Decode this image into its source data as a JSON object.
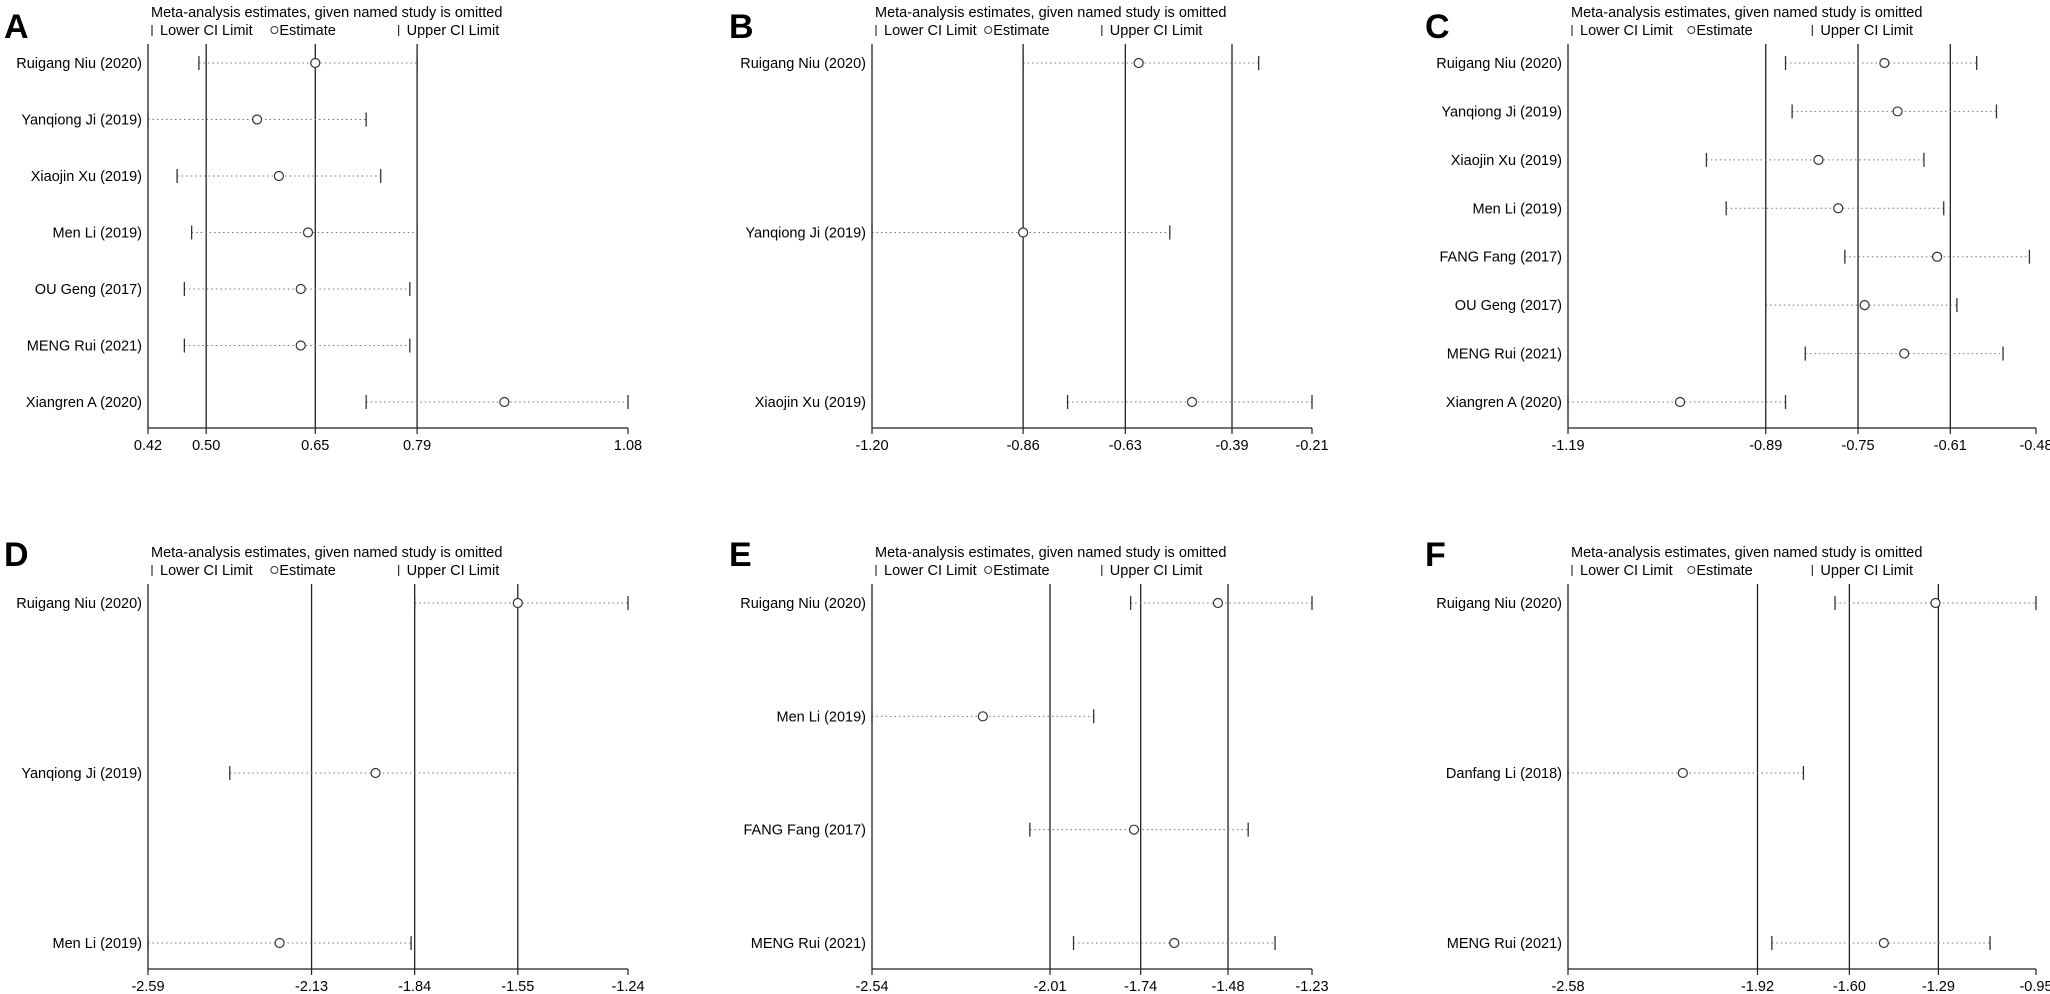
{
  "chart_data": [
    {
      "panel": "A",
      "type": "scatter",
      "title": "Meta-analysis estimates, given named study is omitted",
      "legend": [
        "Lower CI Limit",
        "Estimate",
        "Upper CI Limit"
      ],
      "ticks": [
        "0.42",
        "0.50",
        "0.65",
        "0.79",
        "1.08"
      ],
      "xlim": [
        0.42,
        1.08
      ],
      "ref_lines": [
        0.5,
        0.65,
        0.79
      ],
      "studies": [
        {
          "label": "Ruigang Niu (2020)",
          "lower": 0.49,
          "estimate": 0.65,
          "upper": 0.79
        },
        {
          "label": "Yanqiong Ji (2019)",
          "lower": 0.42,
          "estimate": 0.57,
          "upper": 0.72
        },
        {
          "label": "Xiaojin Xu (2019)",
          "lower": 0.46,
          "estimate": 0.6,
          "upper": 0.74
        },
        {
          "label": "Men Li (2019)",
          "lower": 0.48,
          "estimate": 0.64,
          "upper": 0.79
        },
        {
          "label": "OU Geng (2017)",
          "lower": 0.47,
          "estimate": 0.63,
          "upper": 0.78
        },
        {
          "label": "MENG Rui (2021)",
          "lower": 0.47,
          "estimate": 0.63,
          "upper": 0.78
        },
        {
          "label": "Xiangren A (2020)",
          "lower": 0.72,
          "estimate": 0.91,
          "upper": 1.08
        }
      ]
    },
    {
      "panel": "B",
      "type": "scatter",
      "title": "Meta-analysis estimates, given named study is omitted",
      "legend": [
        "Lower CI Limit",
        "Estimate",
        "Upper CI Limit"
      ],
      "ticks": [
        "-1.20",
        "-0.86",
        "-0.63",
        "-0.39",
        "-0.21"
      ],
      "xlim": [
        -1.2,
        -0.21
      ],
      "ref_lines": [
        -0.86,
        -0.63,
        -0.39
      ],
      "studies": [
        {
          "label": "Ruigang Niu (2020)",
          "lower": -0.86,
          "estimate": -0.6,
          "upper": -0.33
        },
        {
          "label": "Yanqiong Ji (2019)",
          "lower": -1.2,
          "estimate": -0.86,
          "upper": -0.53
        },
        {
          "label": "Xiaojin Xu (2019)",
          "lower": -0.76,
          "estimate": -0.48,
          "upper": -0.21
        }
      ]
    },
    {
      "panel": "C",
      "type": "scatter",
      "title": "Meta-analysis estimates, given named study is omitted",
      "legend": [
        "Lower CI Limit",
        "Estimate",
        "Upper CI Limit"
      ],
      "ticks": [
        "-1.19",
        "-0.89",
        "-0.75",
        "-0.61",
        "-0.48"
      ],
      "xlim": [
        -1.19,
        -0.48
      ],
      "ref_lines": [
        -0.89,
        -0.75,
        -0.61
      ],
      "studies": [
        {
          "label": "Ruigang Niu (2020)",
          "lower": -0.86,
          "estimate": -0.71,
          "upper": -0.57
        },
        {
          "label": "Yanqiong Ji (2019)",
          "lower": -0.85,
          "estimate": -0.69,
          "upper": -0.54
        },
        {
          "label": "Xiaojin Xu (2019)",
          "lower": -0.98,
          "estimate": -0.81,
          "upper": -0.65
        },
        {
          "label": "Men Li (2019)",
          "lower": -0.95,
          "estimate": -0.78,
          "upper": -0.62
        },
        {
          "label": "FANG Fang (2017)",
          "lower": -0.77,
          "estimate": -0.63,
          "upper": -0.49
        },
        {
          "label": "OU Geng (2017)",
          "lower": -0.89,
          "estimate": -0.74,
          "upper": -0.6
        },
        {
          "label": "MENG Rui (2021)",
          "lower": -0.83,
          "estimate": -0.68,
          "upper": -0.53
        },
        {
          "label": "Xiangren A (2020)",
          "lower": -1.19,
          "estimate": -1.02,
          "upper": -0.86
        }
      ]
    },
    {
      "panel": "D",
      "type": "scatter",
      "title": "Meta-analysis estimates, given named study is omitted",
      "legend": [
        "Lower CI Limit",
        "Estimate",
        "Upper CI Limit"
      ],
      "ticks": [
        "-2.59",
        "-2.13",
        "-1.84",
        "-1.55",
        "-1.24"
      ],
      "xlim": [
        -2.59,
        -1.24
      ],
      "ref_lines": [
        -2.13,
        -1.84,
        -1.55
      ],
      "studies": [
        {
          "label": "Ruigang Niu (2020)",
          "lower": -1.84,
          "estimate": -1.55,
          "upper": -1.24
        },
        {
          "label": "Yanqiong Ji (2019)",
          "lower": -2.36,
          "estimate": -1.95,
          "upper": -1.55
        },
        {
          "label": "Men Li (2019)",
          "lower": -2.59,
          "estimate": -2.22,
          "upper": -1.85
        }
      ]
    },
    {
      "panel": "E",
      "type": "scatter",
      "title": "Meta-analysis estimates, given named study is omitted",
      "legend": [
        "Lower CI Limit",
        "Estimate",
        "Upper CI Limit"
      ],
      "ticks": [
        "-2.54",
        "-2.01",
        "-1.74",
        "-1.48",
        "-1.23"
      ],
      "xlim": [
        -2.54,
        -1.23
      ],
      "ref_lines": [
        -2.01,
        -1.74,
        -1.48
      ],
      "studies": [
        {
          "label": "Ruigang Niu (2020)",
          "lower": -1.77,
          "estimate": -1.51,
          "upper": -1.23
        },
        {
          "label": "Men Li (2019)",
          "lower": -2.54,
          "estimate": -2.21,
          "upper": -1.88
        },
        {
          "label": "FANG Fang (2017)",
          "lower": -2.07,
          "estimate": -1.76,
          "upper": -1.42
        },
        {
          "label": "MENG Rui (2021)",
          "lower": -1.94,
          "estimate": -1.64,
          "upper": -1.34
        }
      ]
    },
    {
      "panel": "F",
      "type": "scatter",
      "title": "Meta-analysis estimates, given named study is omitted",
      "legend": [
        "Lower CI Limit",
        "Estimate",
        "Upper CI Limit"
      ],
      "ticks": [
        "-2.58",
        "-1.92",
        "-1.60",
        "-1.29",
        "-0.95"
      ],
      "xlim": [
        -2.58,
        -0.95
      ],
      "ref_lines": [
        -1.92,
        -1.6,
        -1.29
      ],
      "studies": [
        {
          "label": "Ruigang Niu (2020)",
          "lower": -1.65,
          "estimate": -1.3,
          "upper": -0.95
        },
        {
          "label": "Danfang Li (2018)",
          "lower": -2.58,
          "estimate": -2.18,
          "upper": -1.76
        },
        {
          "label": "MENG Rui (2021)",
          "lower": -1.87,
          "estimate": -1.48,
          "upper": -1.11
        }
      ]
    }
  ]
}
